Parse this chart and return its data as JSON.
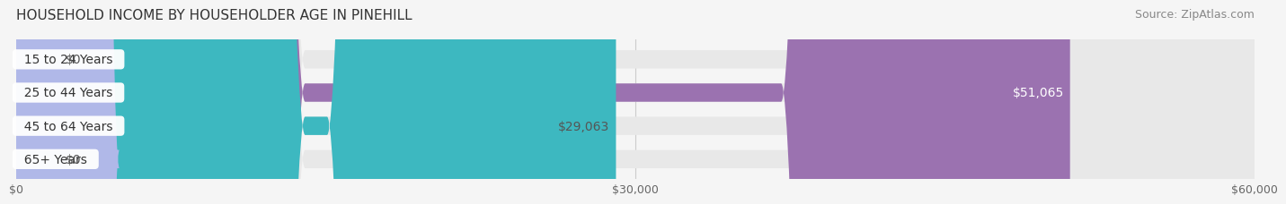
{
  "title": "HOUSEHOLD INCOME BY HOUSEHOLDER AGE IN PINEHILL",
  "source": "Source: ZipAtlas.com",
  "categories": [
    "15 to 24 Years",
    "25 to 44 Years",
    "45 to 64 Years",
    "65+ Years"
  ],
  "values": [
    0,
    51065,
    29063,
    0
  ],
  "bar_colors": [
    "#a8c4e0",
    "#9b72b0",
    "#3db8c0",
    "#b0b8e8"
  ],
  "label_colors": [
    "#555555",
    "#ffffff",
    "#555555",
    "#555555"
  ],
  "bar_labels": [
    "$0",
    "$51,065",
    "$29,063",
    "$0"
  ],
  "xlim": [
    0,
    60000
  ],
  "xticks": [
    0,
    30000,
    60000
  ],
  "xtick_labels": [
    "$0",
    "$30,000",
    "$60,000"
  ],
  "background_color": "#f5f5f5",
  "bar_background_color": "#e8e8e8",
  "title_fontsize": 11,
  "source_fontsize": 9,
  "label_fontsize": 10,
  "tick_fontsize": 9,
  "bar_height": 0.55,
  "figsize": [
    14.06,
    2.33
  ],
  "dpi": 100
}
